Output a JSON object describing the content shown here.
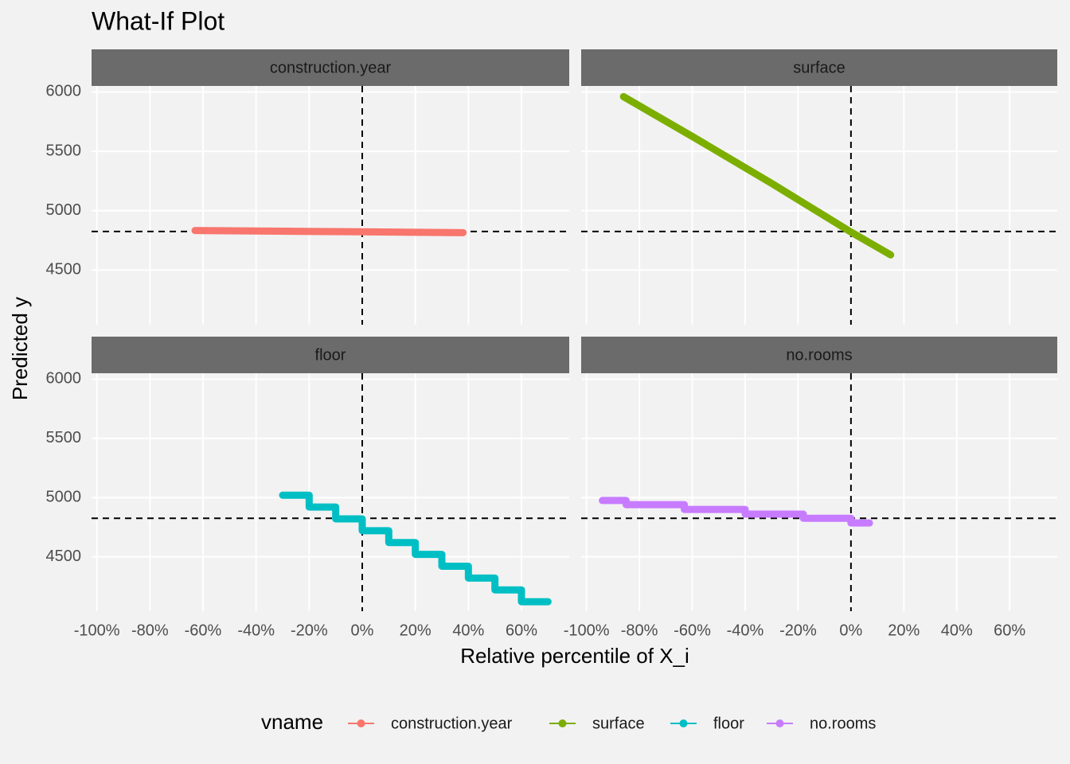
{
  "chart_data": {
    "type": "line",
    "title": "What-If Plot",
    "x_label": "Relative percentile of X_i",
    "y_label": "Predicted y",
    "legend_title": "vname",
    "xlim": [
      -102,
      78
    ],
    "ylim": [
      4040,
      6050
    ],
    "xticks": [
      {
        "value": -100,
        "label": "-100%"
      },
      {
        "value": -80,
        "label": "-80%"
      },
      {
        "value": -60,
        "label": "-60%"
      },
      {
        "value": -40,
        "label": "-40%"
      },
      {
        "value": -20,
        "label": "-20%"
      },
      {
        "value": 0,
        "label": "0%"
      },
      {
        "value": 20,
        "label": "20%"
      },
      {
        "value": 40,
        "label": "40%"
      },
      {
        "value": 60,
        "label": "60%"
      }
    ],
    "yticks": [
      4500,
      5000,
      5500,
      6000
    ],
    "reference": {
      "x": 0,
      "y": 4825
    },
    "panels": [
      {
        "name": "construction.year",
        "color": "#f8766d",
        "x": [
          -63,
          -30,
          0,
          38
        ],
        "values": [
          4833,
          4827,
          4822,
          4815
        ]
      },
      {
        "name": "surface",
        "color": "#7cae00",
        "x": [
          -86,
          -60,
          -30,
          0,
          15
        ],
        "values": [
          5960,
          5625,
          5230,
          4820,
          4628
        ]
      },
      {
        "name": "floor",
        "color": "#00bfc4",
        "x": [
          -30,
          -20,
          -20,
          -10,
          -10,
          0,
          0,
          10,
          10,
          20,
          20,
          30,
          30,
          40,
          40,
          50,
          50,
          60,
          60,
          70
        ],
        "values": [
          5020,
          5020,
          4920,
          4920,
          4820,
          4820,
          4720,
          4720,
          4620,
          4620,
          4520,
          4520,
          4420,
          4420,
          4320,
          4320,
          4220,
          4220,
          4120,
          4120
        ]
      },
      {
        "name": "no.rooms",
        "color": "#c77cff",
        "x": [
          -94,
          -85,
          -85,
          -63,
          -63,
          -40,
          -40,
          -18,
          -18,
          0,
          0,
          7
        ],
        "values": [
          4975,
          4975,
          4940,
          4940,
          4900,
          4900,
          4860,
          4860,
          4825,
          4825,
          4785,
          4785
        ]
      }
    ]
  }
}
